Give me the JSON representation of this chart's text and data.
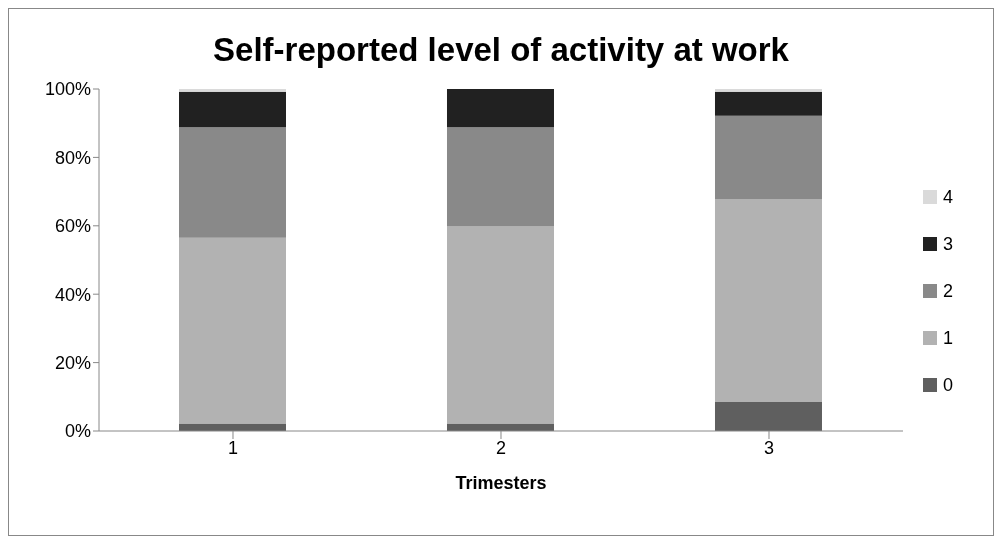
{
  "chart_data": {
    "type": "bar",
    "title": "Self-reported level of activity at work",
    "xlabel": "Trimesters",
    "categories": [
      "1",
      "2",
      "3"
    ],
    "stacked": true,
    "series": [
      {
        "name": "0",
        "color": "#5f5f5f",
        "values": [
          2.2,
          2.2,
          8.5
        ]
      },
      {
        "name": "1",
        "color": "#b2b2b2",
        "values": [
          54.3,
          57.6,
          59.3
        ]
      },
      {
        "name": "2",
        "color": "#898989",
        "values": [
          32.3,
          29,
          24.4
        ]
      },
      {
        "name": "3",
        "color": "#212121",
        "values": [
          10.4,
          11.2,
          7
        ]
      },
      {
        "name": "4",
        "color": "#dadada",
        "values": [
          0.8,
          0,
          0.8
        ]
      }
    ],
    "ylim": [
      0,
      100
    ],
    "yticks": [
      {
        "value": 0,
        "label": "0%"
      },
      {
        "value": 20,
        "label": "20%"
      },
      {
        "value": 40,
        "label": "40%"
      },
      {
        "value": 60,
        "label": "60%"
      },
      {
        "value": 80,
        "label": "80%"
      },
      {
        "value": 100,
        "label": "100%"
      }
    ],
    "grid": false,
    "legend": "right"
  }
}
